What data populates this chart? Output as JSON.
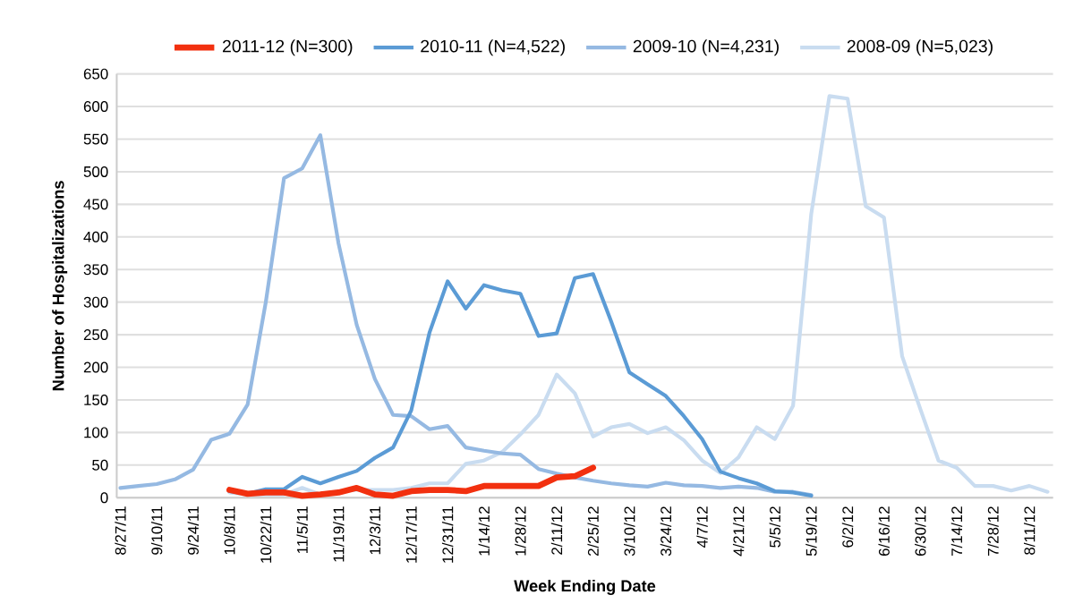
{
  "chart_data": {
    "type": "line",
    "xlabel": "Week Ending Date",
    "ylabel": "Number of Hospitalizations",
    "categories": [
      "8/27/11",
      null,
      "9/10/11",
      null,
      "9/24/11",
      null,
      "10/8/11",
      null,
      "10/22/11",
      null,
      "11/5/11",
      null,
      "11/19/11",
      null,
      "12/3/11",
      null,
      "12/17/11",
      null,
      "12/31/11",
      null,
      "1/14/12",
      null,
      "1/28/12",
      null,
      "2/11/12",
      null,
      "2/25/12",
      null,
      "3/10/12",
      null,
      "3/24/12",
      null,
      "4/7/12",
      null,
      "4/21/12",
      null,
      "5/5/12",
      null,
      "5/19/12",
      null,
      "6/2/12",
      null,
      "6/16/12",
      null,
      "6/30/12",
      null,
      "7/14/12",
      null,
      "7/28/12",
      null,
      "8/11/12",
      null
    ],
    "series": [
      {
        "name": "2011-12 (N=300)",
        "color": "#f2300f",
        "values": [
          null,
          null,
          null,
          null,
          null,
          null,
          12,
          6,
          8,
          8,
          3,
          5,
          8,
          15,
          5,
          3,
          10,
          12,
          12,
          10,
          18,
          18,
          18,
          18,
          31,
          33,
          46,
          null,
          null,
          null,
          null,
          null,
          null,
          null,
          null,
          null,
          null,
          null,
          null,
          null,
          null,
          null,
          null,
          null,
          null,
          null,
          null,
          null,
          null,
          null,
          null,
          null
        ]
      },
      {
        "name": "2010-11 (N=4,522)",
        "color": "#5b9bd5",
        "values": [
          null,
          null,
          null,
          null,
          null,
          null,
          10,
          6,
          13,
          13,
          32,
          22,
          32,
          41,
          61,
          77,
          134,
          253,
          332,
          290,
          326,
          318,
          313,
          248,
          252,
          337,
          343,
          270,
          192,
          174,
          156,
          125,
          90,
          40,
          30,
          22,
          10,
          8,
          3,
          null,
          null,
          null,
          null,
          null,
          null,
          null,
          null,
          null,
          null,
          null,
          null,
          null
        ]
      },
      {
        "name": "2009-10 (N=4,231)",
        "color": "#95b9e2",
        "values": [
          15,
          18,
          21,
          28,
          43,
          89,
          98,
          143,
          300,
          490,
          505,
          556,
          390,
          265,
          182,
          127,
          125,
          105,
          110,
          77,
          72,
          68,
          66,
          44,
          37,
          31,
          26,
          22,
          19,
          17,
          23,
          19,
          18,
          15,
          17,
          15,
          9,
          9,
          4,
          null,
          null,
          null,
          null,
          null,
          null,
          null,
          null,
          null,
          null,
          null,
          null,
          null
        ]
      },
      {
        "name": "2008-09 (N=5,023)",
        "color": "#c9dcf0",
        "values": [
          null,
          null,
          null,
          null,
          null,
          null,
          8,
          5,
          5,
          5,
          15,
          5,
          10,
          12,
          12,
          12,
          15,
          22,
          22,
          52,
          57,
          70,
          97,
          127,
          189,
          160,
          94,
          108,
          113,
          99,
          108,
          88,
          57,
          38,
          62,
          108,
          90,
          141,
          435,
          616,
          612,
          447,
          430,
          217,
          136,
          57,
          46,
          18,
          18,
          11,
          18,
          9
        ]
      }
    ],
    "ylim": [
      0,
      650
    ],
    "yticks": [
      0,
      50,
      100,
      150,
      200,
      250,
      300,
      350,
      400,
      450,
      500,
      550,
      600,
      650
    ],
    "grid": "y",
    "legend": "top",
    "marker": "none",
    "line_style": "solid"
  }
}
